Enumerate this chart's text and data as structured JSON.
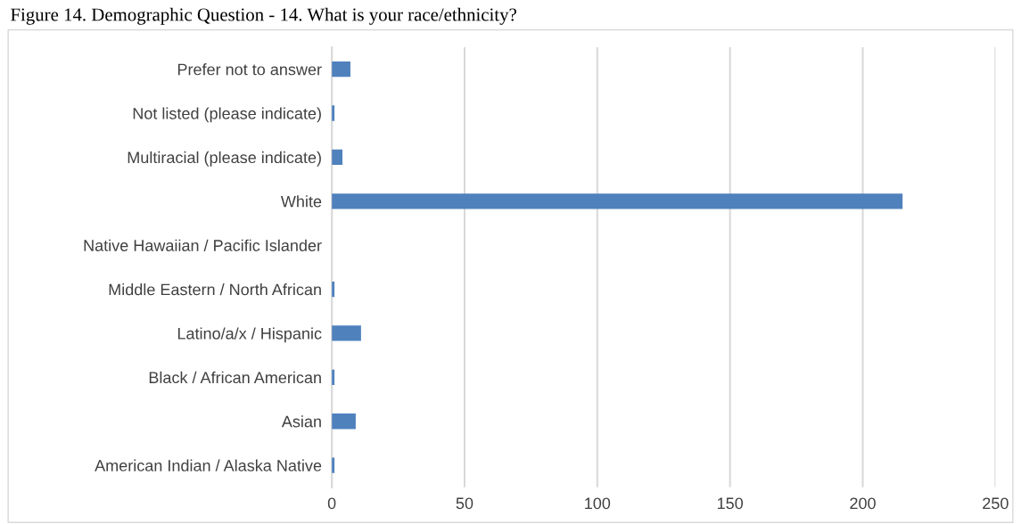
{
  "chart_data": {
    "type": "bar",
    "orientation": "horizontal",
    "title": "Figure 14. Demographic Question - 14. What is your race/ethnicity?",
    "categories": [
      "Prefer not to answer",
      "Not listed (please indicate)",
      "Multiracial (please indicate)",
      "White",
      "Native Hawaiian / Pacific Islander",
      "Middle Eastern / North African",
      "Latino/a/x / Hispanic",
      "Black / African American",
      "Asian",
      "American Indian / Alaska Native"
    ],
    "values": [
      7,
      1,
      4,
      215,
      0,
      1,
      11,
      1,
      9,
      1
    ],
    "color": "#4f81bd",
    "xlim": [
      0,
      250
    ],
    "xticks": [
      0,
      50,
      100,
      150,
      200,
      250
    ],
    "grid": "x"
  }
}
